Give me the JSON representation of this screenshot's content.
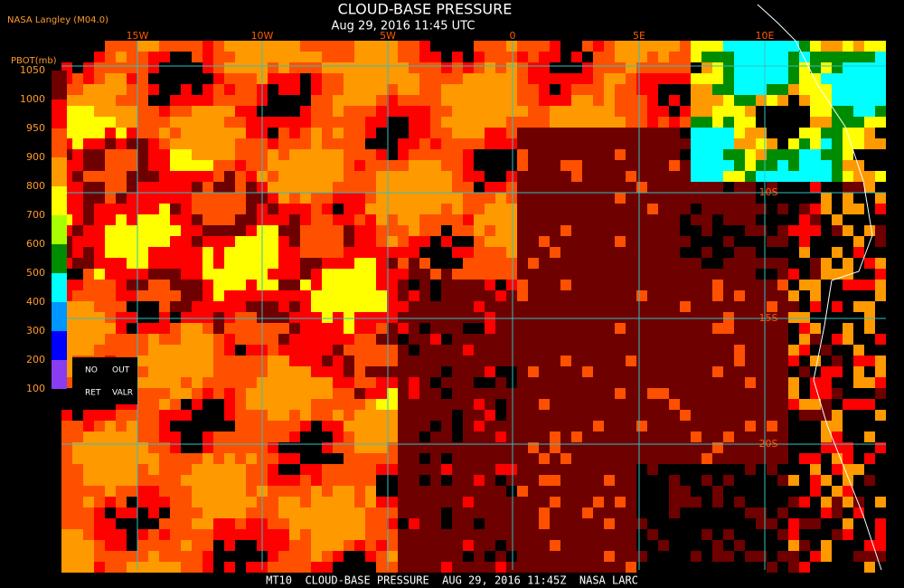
{
  "header": {
    "title": "CLOUD-BASE PRESSURE",
    "subtitle": "Aug 29, 2016 11:45 UTC",
    "source": "NASA Langley (M04.0)"
  },
  "colorbar": {
    "label": "PBOT(mb)",
    "levels": [
      1050,
      1000,
      950,
      900,
      800,
      700,
      600,
      500,
      400,
      300,
      200,
      100
    ],
    "colors": [
      "#6e0000",
      "#ff0000",
      "#ff5000",
      "#ff9900",
      "#ffff00",
      "#a8ff00",
      "#008c00",
      "#00ffff",
      "#0096ff",
      "#0000ff",
      "#8a3cf0"
    ],
    "no_retrieval": [
      "NO",
      "OUT",
      "RET",
      "VALR"
    ]
  },
  "map": {
    "lon_labels": [
      "15W",
      "10W",
      "5W",
      "0",
      "5E",
      "10E"
    ],
    "lat_labels": [
      "10S",
      "15S",
      "20S"
    ]
  },
  "footer": "MT10  CLOUD-BASE PRESSURE  AUG 29, 2016 11:45Z  NASA LARC"
}
